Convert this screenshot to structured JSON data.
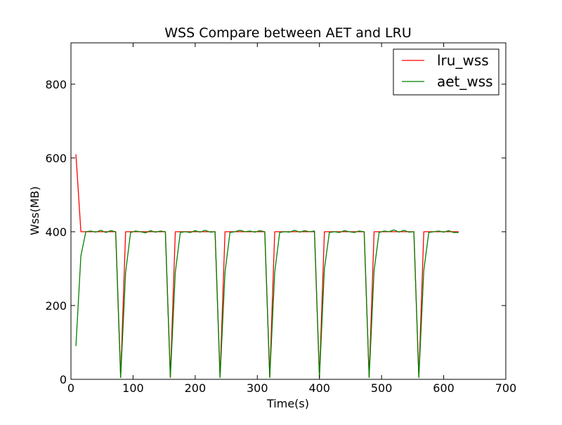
{
  "chart_data": {
    "type": "line",
    "title": "WSS Compare between AET and LRU",
    "xlabel": "Time(s)",
    "ylabel": "Wss(MB)",
    "xlim": [
      0,
      700
    ],
    "ylim": [
      0,
      912
    ],
    "xticks": [
      0,
      100,
      200,
      300,
      400,
      500,
      600,
      700
    ],
    "yticks": [
      0,
      200,
      400,
      600,
      800
    ],
    "xtick_labels": [
      "0",
      "100",
      "200",
      "300",
      "400",
      "500",
      "600",
      "700"
    ],
    "ytick_labels": [
      "0",
      "200",
      "400",
      "600",
      "800"
    ],
    "grid": false,
    "legend_position": "top-right",
    "series": [
      {
        "name": "lru_wss",
        "color": "#ff0000",
        "x": [
          8,
          16,
          24,
          32,
          40,
          48,
          56,
          64,
          72,
          80,
          88,
          96,
          104,
          112,
          120,
          128,
          136,
          144,
          152,
          160,
          168,
          176,
          184,
          192,
          200,
          208,
          216,
          224,
          232,
          240,
          248,
          256,
          264,
          272,
          280,
          288,
          296,
          304,
          312,
          320,
          328,
          336,
          344,
          352,
          360,
          368,
          376,
          384,
          392,
          400,
          408,
          416,
          424,
          432,
          440,
          448,
          456,
          464,
          472,
          480,
          488,
          496,
          504,
          512,
          520,
          528,
          536,
          544,
          552,
          560,
          568,
          576,
          584,
          592,
          600,
          608,
          616,
          624
        ],
        "values": [
          610,
          400,
          400,
          400,
          400,
          400,
          400,
          400,
          400,
          5,
          400,
          400,
          400,
          400,
          400,
          400,
          400,
          400,
          400,
          5,
          400,
          400,
          400,
          400,
          400,
          400,
          400,
          400,
          400,
          5,
          400,
          400,
          400,
          400,
          400,
          400,
          400,
          400,
          400,
          5,
          400,
          400,
          400,
          400,
          400,
          400,
          400,
          400,
          400,
          5,
          400,
          400,
          400,
          400,
          400,
          400,
          400,
          400,
          400,
          5,
          400,
          400,
          400,
          400,
          400,
          400,
          400,
          400,
          400,
          5,
          400,
          400,
          400,
          400,
          400,
          400,
          400,
          400
        ]
      },
      {
        "name": "aet_wss",
        "color": "#008000",
        "x": [
          8,
          16,
          24,
          32,
          40,
          48,
          56,
          64,
          72,
          80,
          88,
          96,
          104,
          112,
          120,
          128,
          136,
          144,
          152,
          160,
          168,
          176,
          184,
          192,
          200,
          208,
          216,
          224,
          232,
          240,
          248,
          256,
          264,
          272,
          280,
          288,
          296,
          304,
          312,
          320,
          328,
          336,
          344,
          352,
          360,
          368,
          376,
          384,
          392,
          400,
          408,
          416,
          424,
          432,
          440,
          448,
          456,
          464,
          472,
          480,
          488,
          496,
          504,
          512,
          520,
          528,
          536,
          544,
          552,
          560,
          568,
          576,
          584,
          592,
          600,
          608,
          616,
          624
        ],
        "values": [
          90,
          335,
          400,
          402,
          399,
          404,
          398,
          403,
          400,
          5,
          290,
          398,
          402,
          400,
          397,
          403,
          399,
          402,
          400,
          5,
          290,
          398,
          400,
          398,
          403,
          399,
          404,
          399,
          400,
          5,
          290,
          398,
          400,
          404,
          400,
          402,
          399,
          403,
          400,
          5,
          290,
          398,
          400,
          399,
          404,
          399,
          403,
          400,
          402,
          5,
          300,
          398,
          400,
          398,
          403,
          400,
          398,
          402,
          400,
          5,
          295,
          398,
          402,
          400,
          405,
          399,
          404,
          399,
          400,
          5,
          295,
          398,
          400,
          402,
          399,
          403,
          398,
          398
        ]
      }
    ]
  }
}
